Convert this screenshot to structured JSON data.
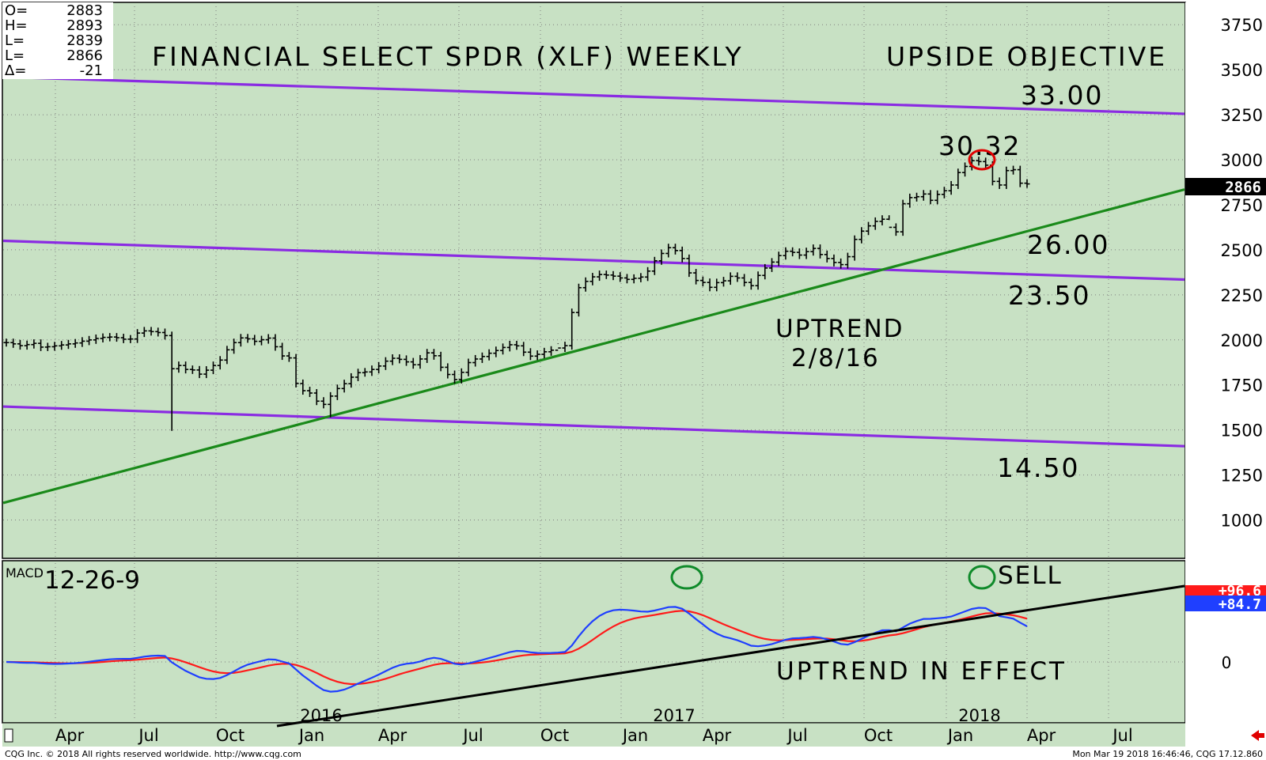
{
  "ohlc_box": {
    "rows": [
      {
        "label": "O=",
        "value": "2883"
      },
      {
        "label": "H=",
        "value": "2893"
      },
      {
        "label": "L=",
        "value": "2839"
      },
      {
        "label": "L=",
        "value": "2866"
      },
      {
        "label": "Δ=",
        "value": "-21"
      }
    ]
  },
  "footer": {
    "copyright": "CQG Inc. © 2018 All rights reserved worldwide. http://www.cqg.com",
    "timestamp": "Mon Mar 19 2018 16:46:46, CQG 17.12.860"
  },
  "colors": {
    "background": "#c8e1c4",
    "price_bars": "#000000",
    "channel_lines": "#8a2be2",
    "trendline": "#1a8a1a",
    "macd_line": "#1f3fff",
    "signal_line": "#ff1a1a",
    "circle_top": "#e00000",
    "circle_macd": "#0f8a2a",
    "macd_trendline": "#000000"
  },
  "chart_data": [
    {
      "type": "ohlc",
      "title": "FINANCIAL SELECT SPDR (XLF) WEEKLY",
      "y_axis_ticks": [
        1000,
        1250,
        1500,
        1750,
        2000,
        2250,
        2500,
        2750,
        3000,
        3250,
        3500,
        3750
      ],
      "ylim": [
        840,
        3830
      ],
      "x_month_labels": [
        "Apr",
        "Jul",
        "Oct",
        "Jan",
        "Apr",
        "Jul",
        "Oct",
        "Jan",
        "Apr",
        "Jul",
        "Oct",
        "Jan",
        "Apr",
        "Jul"
      ],
      "year_labels": [
        "2016",
        "2017",
        "2018"
      ],
      "last_price_label": "2866",
      "series_close_weekly": [
        1985,
        1978,
        1968,
        1974,
        1981,
        1960,
        1962,
        1967,
        1972,
        1978,
        1983,
        1993,
        2000,
        2008,
        2014,
        2016,
        2012,
        2004,
        2005,
        2038,
        2050,
        2046,
        2041,
        2024,
        1840,
        1858,
        1836,
        1833,
        1810,
        1832,
        1858,
        1888,
        1945,
        1985,
        2011,
        2006,
        1992,
        2001,
        2010,
        1962,
        1911,
        1900,
        1758,
        1718,
        1705,
        1660,
        1642,
        1688,
        1730,
        1757,
        1793,
        1818,
        1822,
        1836,
        1855,
        1882,
        1898,
        1892,
        1878,
        1862,
        1894,
        1928,
        1912,
        1848,
        1808,
        1780,
        1820,
        1874,
        1894,
        1908,
        1926,
        1941,
        1958,
        1973,
        1967,
        1932,
        1910,
        1920,
        1934,
        1943,
        1955,
        1968,
        2152,
        2290,
        2325,
        2350,
        2363,
        2360,
        2354,
        2344,
        2336,
        2342,
        2349,
        2382,
        2439,
        2480,
        2512,
        2496,
        2452,
        2372,
        2330,
        2319,
        2292,
        2318,
        2328,
        2353,
        2344,
        2319,
        2301,
        2358,
        2399,
        2432,
        2468,
        2492,
        2486,
        2471,
        2490,
        2508,
        2474,
        2452,
        2430,
        2418,
        2462,
        2558,
        2604,
        2633,
        2658,
        2670,
        2625,
        2600,
        2756,
        2790,
        2795,
        2810,
        2775,
        2808,
        2828,
        2860,
        2929,
        2963,
        2995,
        2990,
        2970,
        2880,
        2860,
        2940,
        2945,
        2870,
        2866
      ],
      "annotations": {
        "upside_objective_label": "UPSIDE OBJECTIVE",
        "level_33": "33.00",
        "level_30_32": "30.32",
        "level_26": "26.00",
        "level_23_50": "23.50",
        "level_14_50": "14.50",
        "uptrend_label": "UPTREND",
        "uptrend_date": "2/8/16"
      }
    },
    {
      "type": "line",
      "title": "MACD",
      "params_label": "12-26-9",
      "y_axis_ticks": [
        0
      ],
      "series": [
        {
          "name": "",
          "color": "#1f3fff"
        },
        {
          "name": "",
          "color": "#ff1a1a"
        }
      ],
      "macd_value_label": "+84.7",
      "signal_value_label": "+96.6",
      "annotations": {
        "sell_label": "SELL",
        "uptrend_label": "UPTREND IN EFFECT"
      }
    }
  ]
}
